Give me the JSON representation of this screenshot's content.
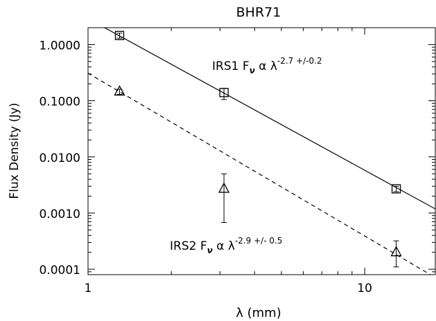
{
  "chart_data": {
    "type": "scatter",
    "title": "BHR71",
    "xlabel": "λ (mm)",
    "ylabel": "Flux Density (Jy)",
    "xscale": "log",
    "yscale": "log",
    "xlim": [
      1,
      18
    ],
    "ylim": [
      8e-05,
      2
    ],
    "x_ticks": [
      {
        "value": 1,
        "label": "1"
      },
      {
        "value": 10,
        "label": "10"
      }
    ],
    "y_ticks": [
      {
        "value": 1,
        "label": "1.0000"
      },
      {
        "value": 0.1,
        "label": "0.1000"
      },
      {
        "value": 0.01,
        "label": "0.0100"
      },
      {
        "value": 0.001,
        "label": "0.0010"
      },
      {
        "value": 0.0001,
        "label": "0.0001"
      }
    ],
    "grid": false,
    "series": [
      {
        "name": "IRS1",
        "marker": "square",
        "points": [
          {
            "x": 1.3,
            "y": 1.45,
            "yerr_low": 1.3,
            "yerr_high": 1.6
          },
          {
            "x": 3.1,
            "y": 0.14,
            "yerr_low": 0.105,
            "yerr_high": 0.165
          },
          {
            "x": 13.0,
            "y": 0.0027,
            "yerr_low": 0.0024,
            "yerr_high": 0.003
          }
        ],
        "fit": {
          "style": "solid",
          "slope": -2.7,
          "y_at_x1": 2.9
        }
      },
      {
        "name": "IRS2",
        "marker": "triangle",
        "points": [
          {
            "x": 1.3,
            "y": 0.145,
            "yerr_low": 0.13,
            "yerr_high": 0.16
          },
          {
            "x": 3.1,
            "y": 0.0027,
            "yerr_low": 0.00068,
            "yerr_high": 0.005
          },
          {
            "x": 13.0,
            "y": 0.0002,
            "yerr_low": 0.00011,
            "yerr_high": 0.00032
          }
        ],
        "fit": {
          "style": "dashed",
          "slope": -2.9,
          "y_at_x1": 0.31
        }
      }
    ],
    "annotations": [
      {
        "id": "irs1",
        "prefix": "IRS1 F",
        "sub": "ν",
        "mid": " α λ",
        "sup": "-2.7 +/-0.2"
      },
      {
        "id": "irs2",
        "prefix": "IRS2 F",
        "sub": "ν",
        "mid": " α λ",
        "sup": "-2.9 +/- 0.5"
      }
    ]
  }
}
